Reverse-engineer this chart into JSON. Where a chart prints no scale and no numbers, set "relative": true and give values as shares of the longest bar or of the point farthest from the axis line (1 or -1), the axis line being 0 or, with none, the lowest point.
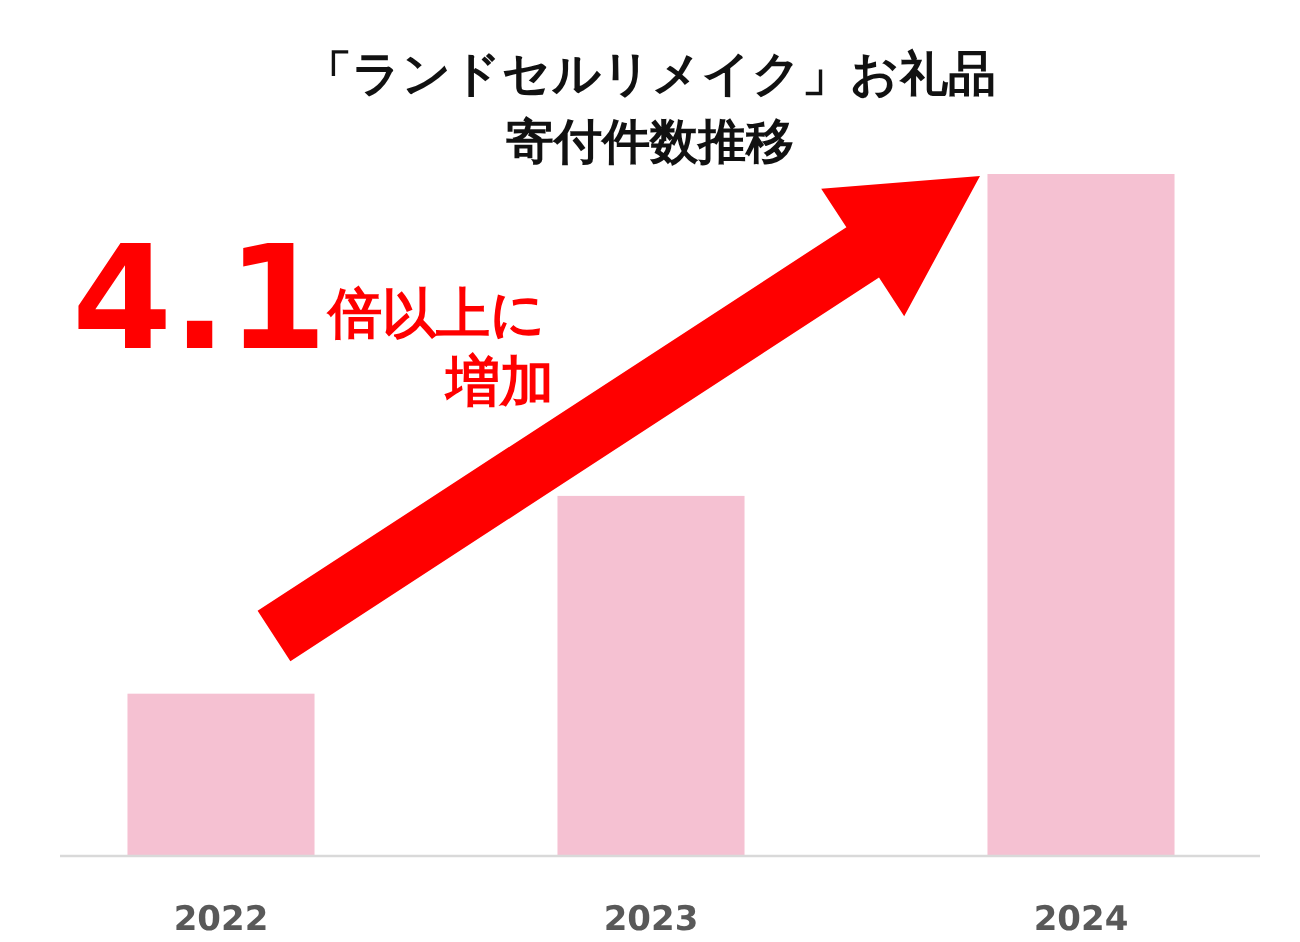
{
  "chart_data": {
    "type": "bar",
    "title": "「ランドセルリメイク」お礼品",
    "subtitle": "寄付件数推移",
    "relative": true,
    "categories": [
      "2022",
      "2023",
      "2024"
    ],
    "values": [
      0.238,
      0.528,
      1
    ],
    "color": "#f5c1d2",
    "annotations": [
      "4.1",
      "倍以上に",
      "増加"
    ]
  }
}
